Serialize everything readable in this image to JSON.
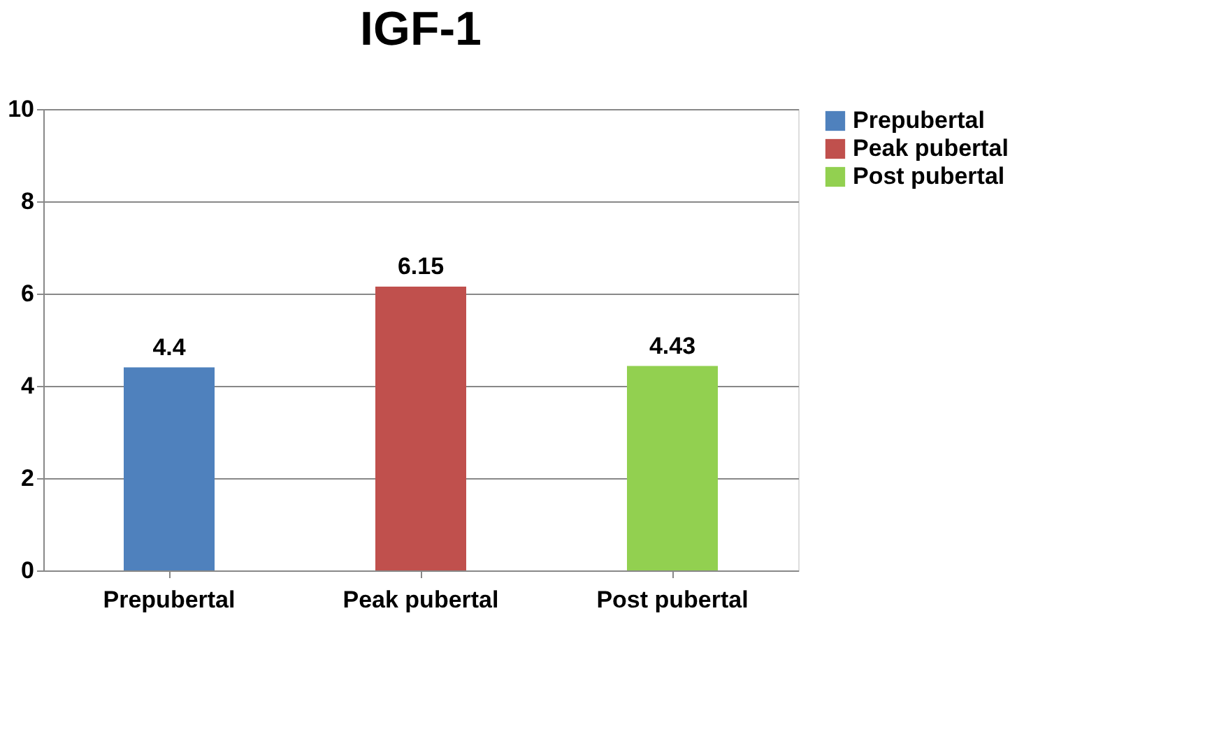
{
  "chart_data": {
    "type": "bar",
    "title": "IGF-1",
    "categories": [
      "Prepubertal",
      "Peak pubertal",
      "Post pubertal"
    ],
    "series": [
      {
        "name": "Prepubertal",
        "color": "#4f81bd",
        "values": [
          4.4,
          null,
          null
        ]
      },
      {
        "name": "Peak pubertal",
        "color": "#c0504d",
        "values": [
          null,
          6.15,
          null
        ]
      },
      {
        "name": "Post pubertal",
        "color": "#92d050",
        "values": [
          null,
          null,
          4.43
        ]
      }
    ],
    "ylim": [
      0,
      10
    ],
    "yticks": [
      0,
      2,
      4,
      6,
      8,
      10
    ],
    "grid": "y",
    "legend": "right",
    "data_labels": true
  }
}
